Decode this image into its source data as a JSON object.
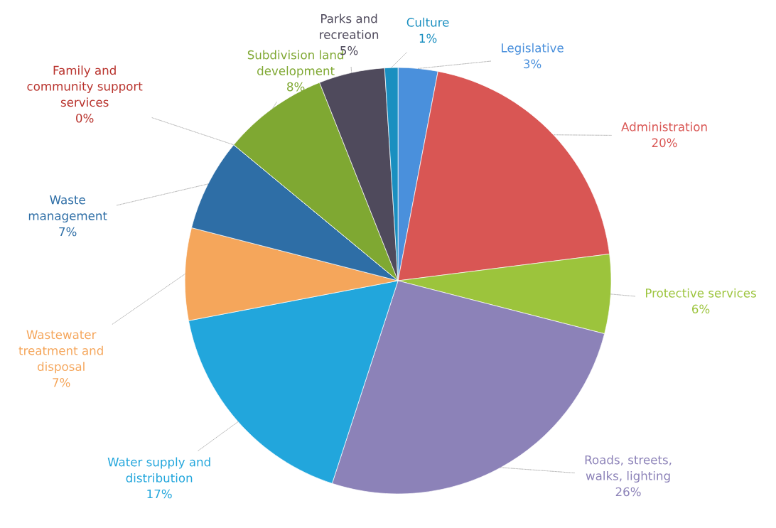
{
  "chart_data": {
    "type": "pie",
    "categories": [
      "Legislative",
      "Administration",
      "Protective services",
      "Roads, streets,\nwalks, lighting",
      "Water supply and\ndistribution",
      "Wastewater\ntreatment and\ndisposal",
      "Waste\nmanagement",
      "Family and\ncommunity support\nservices",
      "Subdivision land\ndevelopment",
      "Parks and\nrecreation",
      "Culture"
    ],
    "values": [
      3,
      20,
      6,
      26,
      17,
      7,
      7,
      0,
      8,
      5,
      1
    ],
    "colors": [
      "#4a90dc",
      "#d95654",
      "#9cc43c",
      "#8c82b8",
      "#22a6dc",
      "#f5a65b",
      "#2e6ea6",
      "#b8322c",
      "#7fa832",
      "#4f4a5c",
      "#1a8fc0"
    ],
    "value_labels": [
      "3%",
      "20%",
      "6%",
      "26%",
      "17%",
      "7%",
      "7%",
      "0%",
      "8%",
      "5%",
      "1%"
    ],
    "legend": false
  }
}
